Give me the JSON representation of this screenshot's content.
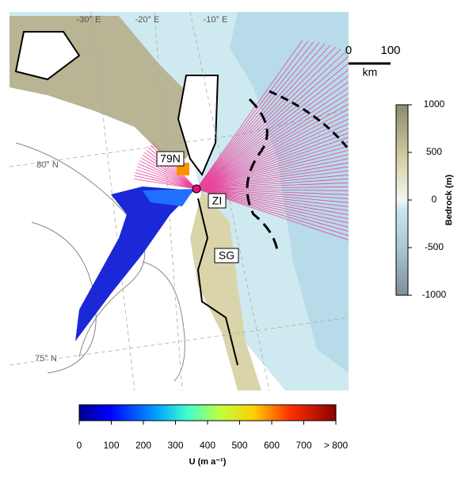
{
  "graticule": {
    "lon_labels": [
      "-30° E",
      "-20° E",
      "-10° E"
    ],
    "lat_labels": [
      "80° N",
      "75° N"
    ]
  },
  "places": [
    "79N",
    "ZI",
    "SG"
  ],
  "scale_bar": {
    "ticks": [
      0,
      100
    ],
    "unit": "km"
  },
  "bedrock_colorbar": {
    "label": "Bedrock (m)",
    "lim": [
      -1000,
      1000
    ],
    "ticks": [
      1000,
      500,
      0,
      -500,
      -1000
    ]
  },
  "velocity_colorbar": {
    "label": "U (m a⁻¹)",
    "lim": [
      0,
      800
    ],
    "ticks": [
      0,
      100,
      200,
      300,
      400,
      500,
      600,
      700,
      {
        "value": 800,
        "label": "> 800"
      }
    ]
  }
}
